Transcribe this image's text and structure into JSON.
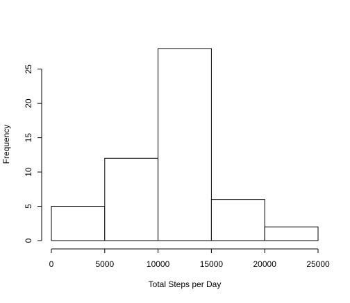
{
  "chart_data": {
    "type": "bar",
    "title": "",
    "xlabel": "Total Steps per Day",
    "ylabel": "Frequency",
    "bins": [
      {
        "start": 0,
        "end": 5000,
        "value": 5
      },
      {
        "start": 5000,
        "end": 10000,
        "value": 12
      },
      {
        "start": 10000,
        "end": 15000,
        "value": 28
      },
      {
        "start": 15000,
        "end": 20000,
        "value": 6
      },
      {
        "start": 20000,
        "end": 25000,
        "value": 2
      }
    ],
    "xlim": [
      0,
      25000
    ],
    "ylim": [
      0,
      28
    ],
    "x_ticks": [
      0,
      5000,
      10000,
      15000,
      20000,
      25000
    ],
    "y_ticks": [
      0,
      5,
      10,
      15,
      20,
      25
    ],
    "grid": false,
    "colors": {
      "bar_fill": "#ffffff",
      "bar_stroke": "#000000",
      "axis": "#000000"
    }
  }
}
